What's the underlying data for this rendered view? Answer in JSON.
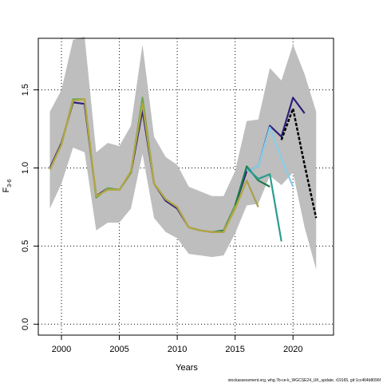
{
  "chart_data": {
    "type": "line",
    "xlabel": "Years",
    "ylabel": "F",
    "ylabel_sub": "3-6",
    "xlim": [
      1998.0,
      2023.5
    ],
    "ylim": [
      -0.07,
      1.83
    ],
    "x_ticks": [
      2000,
      2005,
      2010,
      2015,
      2020
    ],
    "y_ticks": [
      0.0,
      0.5,
      1.0,
      1.5
    ],
    "y_tick_labels": [
      "0.0",
      "0.5",
      "1.0",
      "1.5"
    ],
    "grid": true,
    "footer_text": "stockassessment.org, whg.7b-ce-k_WGCSE24_UK_update, r19165, git:1cc464b8096f",
    "confidence_band": {
      "color": "#bebebe",
      "x": [
        1999,
        2000,
        2001,
        2002,
        2003,
        2004,
        2005,
        2006,
        2007,
        2008,
        2009,
        2010,
        2011,
        2012,
        2013,
        2014,
        2015,
        2016,
        2017,
        2018,
        2019,
        2020,
        2021,
        2022
      ],
      "upper": [
        1.36,
        1.5,
        1.82,
        1.84,
        1.1,
        1.16,
        1.14,
        1.27,
        1.79,
        1.2,
        1.07,
        1.02,
        0.88,
        0.85,
        0.82,
        0.82,
        0.98,
        1.3,
        1.31,
        1.64,
        1.56,
        1.79,
        1.6,
        1.36
      ],
      "lower": [
        0.74,
        0.9,
        1.13,
        1.1,
        0.6,
        0.65,
        0.65,
        0.74,
        1.09,
        0.68,
        0.59,
        0.55,
        0.45,
        0.44,
        0.43,
        0.44,
        0.58,
        0.76,
        0.77,
        0.95,
        0.89,
        0.97,
        0.62,
        0.35
      ]
    },
    "series": [
      {
        "color": "#2c1f7a",
        "x": [
          1999,
          2000,
          2001,
          2002,
          2003,
          2004,
          2005,
          2006,
          2007,
          2008,
          2009,
          2010,
          2011,
          2012,
          2013,
          2014,
          2015,
          2016,
          2017,
          2018,
          2019,
          2020,
          2021
        ],
        "values": [
          1.0,
          1.16,
          1.42,
          1.41,
          0.82,
          0.87,
          0.86,
          0.97,
          1.37,
          0.9,
          0.79,
          0.74,
          0.62,
          0.6,
          0.59,
          0.59,
          0.76,
          0.98,
          1.01,
          1.27,
          1.2,
          1.45,
          1.35
        ]
      },
      {
        "color": "#87ceeb",
        "x": [
          2016,
          2017,
          2018,
          2019,
          2020
        ],
        "values": [
          0.98,
          1.01,
          1.26,
          1.06,
          0.88
        ]
      },
      {
        "color": "#1f7a4a",
        "x": [
          2013,
          2014,
          2015,
          2016,
          2017,
          2018
        ],
        "values": [
          0.59,
          0.6,
          0.76,
          1.01,
          0.92,
          0.88
        ]
      },
      {
        "color": "#2a9d8f",
        "x": [
          2016,
          2017,
          2018,
          2019
        ],
        "values": [
          1.0,
          0.93,
          0.96,
          0.53
        ]
      },
      {
        "color": "#a8a04a",
        "x": [
          2014,
          2015,
          2016,
          2017
        ],
        "values": [
          0.6,
          0.74,
          0.92,
          0.75
        ]
      },
      {
        "color": "#6aa84f",
        "x": [
          1999,
          2000,
          2001,
          2002,
          2003,
          2004,
          2005,
          2006,
          2007,
          2008,
          2009,
          2010,
          2011,
          2012,
          2013,
          2014,
          2015
        ],
        "values": [
          0.99,
          1.15,
          1.44,
          1.44,
          0.81,
          0.87,
          0.86,
          0.97,
          1.45,
          0.9,
          0.8,
          0.75,
          0.62,
          0.6,
          0.59,
          0.59,
          0.76
        ]
      },
      {
        "color": "#b5a642",
        "x": [
          1999,
          2000,
          2001,
          2002,
          2003,
          2004,
          2005,
          2006,
          2007,
          2008,
          2009,
          2010,
          2011,
          2012,
          2013,
          2014,
          2015,
          2016
        ],
        "values": [
          0.99,
          1.15,
          1.43,
          1.44,
          0.82,
          0.86,
          0.86,
          0.98,
          1.41,
          0.9,
          0.8,
          0.75,
          0.62,
          0.6,
          0.59,
          0.59,
          0.74,
          0.92
        ]
      },
      {
        "color": "#000000",
        "dashed": true,
        "x": [
          2019,
          2020,
          2021,
          2022
        ],
        "values": [
          1.18,
          1.38,
          1.02,
          0.68
        ]
      }
    ]
  }
}
